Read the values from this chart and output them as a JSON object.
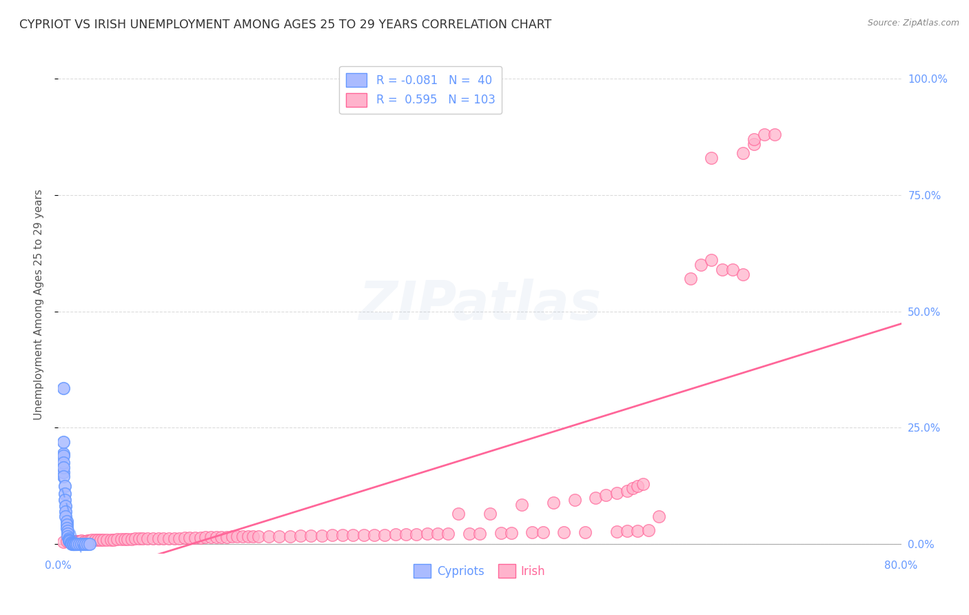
{
  "title": "CYPRIOT VS IRISH UNEMPLOYMENT AMONG AGES 25 TO 29 YEARS CORRELATION CHART",
  "source": "Source: ZipAtlas.com",
  "ylabel": "Unemployment Among Ages 25 to 29 years",
  "xlim": [
    0.0,
    0.8
  ],
  "ylim": [
    -0.02,
    1.05
  ],
  "xticks": [
    0.0,
    0.1,
    0.2,
    0.3,
    0.4,
    0.5,
    0.6,
    0.7,
    0.8
  ],
  "xticklabels": [
    "0.0%",
    "",
    "",
    "",
    "",
    "",
    "",
    "",
    "80.0%"
  ],
  "yticks_right": [
    0.0,
    0.25,
    0.5,
    0.75,
    1.0
  ],
  "yticklabels_right": [
    "0.0%",
    "25.0%",
    "50.0%",
    "75.0%",
    "100.0%"
  ],
  "cypriot_color": "#6699FF",
  "cypriot_color_fill": "#aabbff",
  "irish_color": "#FF6699",
  "irish_color_fill": "#FFB3CC",
  "cypriot_R": -0.081,
  "cypriot_N": 40,
  "irish_R": 0.595,
  "irish_N": 103,
  "watermark": "ZIPatlas",
  "background_color": "#ffffff",
  "grid_color": "#cccccc",
  "title_color": "#333333",
  "axis_label_color": "#6699FF",
  "cypriot_points": [
    [
      0.005,
      0.335
    ],
    [
      0.005,
      0.195
    ],
    [
      0.005,
      0.155
    ],
    [
      0.005,
      0.22
    ],
    [
      0.005,
      0.19
    ],
    [
      0.005,
      0.175
    ],
    [
      0.005,
      0.165
    ],
    [
      0.005,
      0.145
    ],
    [
      0.006,
      0.125
    ],
    [
      0.006,
      0.108
    ],
    [
      0.006,
      0.095
    ],
    [
      0.007,
      0.082
    ],
    [
      0.007,
      0.07
    ],
    [
      0.007,
      0.06
    ],
    [
      0.008,
      0.05
    ],
    [
      0.008,
      0.042
    ],
    [
      0.008,
      0.035
    ],
    [
      0.009,
      0.028
    ],
    [
      0.009,
      0.022
    ],
    [
      0.009,
      0.017
    ],
    [
      0.01,
      0.013
    ],
    [
      0.01,
      0.01
    ],
    [
      0.01,
      0.008
    ],
    [
      0.011,
      0.006
    ],
    [
      0.012,
      0.004
    ],
    [
      0.012,
      0.003
    ],
    [
      0.013,
      0.002
    ],
    [
      0.013,
      0.001
    ],
    [
      0.014,
      0.001
    ],
    [
      0.015,
      0.001
    ],
    [
      0.015,
      0.0
    ],
    [
      0.016,
      0.0
    ],
    [
      0.017,
      0.0
    ],
    [
      0.018,
      0.0
    ],
    [
      0.02,
      0.0
    ],
    [
      0.022,
      0.0
    ],
    [
      0.024,
      0.0
    ],
    [
      0.026,
      0.0
    ],
    [
      0.028,
      0.0
    ],
    [
      0.03,
      0.0
    ]
  ],
  "irish_points": [
    [
      0.005,
      0.005
    ],
    [
      0.008,
      0.006
    ],
    [
      0.01,
      0.007
    ],
    [
      0.012,
      0.005
    ],
    [
      0.014,
      0.006
    ],
    [
      0.016,
      0.007
    ],
    [
      0.018,
      0.006
    ],
    [
      0.02,
      0.007
    ],
    [
      0.022,
      0.008
    ],
    [
      0.025,
      0.007
    ],
    [
      0.028,
      0.008
    ],
    [
      0.03,
      0.008
    ],
    [
      0.032,
      0.009
    ],
    [
      0.035,
      0.009
    ],
    [
      0.038,
      0.009
    ],
    [
      0.04,
      0.01
    ],
    [
      0.043,
      0.01
    ],
    [
      0.046,
      0.01
    ],
    [
      0.05,
      0.01
    ],
    [
      0.053,
      0.01
    ],
    [
      0.056,
      0.011
    ],
    [
      0.06,
      0.011
    ],
    [
      0.063,
      0.011
    ],
    [
      0.066,
      0.011
    ],
    [
      0.07,
      0.011
    ],
    [
      0.073,
      0.012
    ],
    [
      0.077,
      0.012
    ],
    [
      0.08,
      0.012
    ],
    [
      0.085,
      0.012
    ],
    [
      0.09,
      0.012
    ],
    [
      0.095,
      0.013
    ],
    [
      0.1,
      0.013
    ],
    [
      0.105,
      0.013
    ],
    [
      0.11,
      0.013
    ],
    [
      0.115,
      0.013
    ],
    [
      0.12,
      0.014
    ],
    [
      0.125,
      0.014
    ],
    [
      0.13,
      0.014
    ],
    [
      0.135,
      0.014
    ],
    [
      0.14,
      0.015
    ],
    [
      0.145,
      0.015
    ],
    [
      0.15,
      0.015
    ],
    [
      0.155,
      0.015
    ],
    [
      0.16,
      0.015
    ],
    [
      0.165,
      0.016
    ],
    [
      0.17,
      0.016
    ],
    [
      0.175,
      0.016
    ],
    [
      0.18,
      0.016
    ],
    [
      0.185,
      0.016
    ],
    [
      0.19,
      0.016
    ],
    [
      0.2,
      0.017
    ],
    [
      0.21,
      0.017
    ],
    [
      0.22,
      0.017
    ],
    [
      0.23,
      0.018
    ],
    [
      0.24,
      0.018
    ],
    [
      0.25,
      0.018
    ],
    [
      0.26,
      0.019
    ],
    [
      0.27,
      0.019
    ],
    [
      0.28,
      0.019
    ],
    [
      0.29,
      0.02
    ],
    [
      0.3,
      0.02
    ],
    [
      0.31,
      0.02
    ],
    [
      0.32,
      0.021
    ],
    [
      0.33,
      0.021
    ],
    [
      0.34,
      0.021
    ],
    [
      0.35,
      0.022
    ],
    [
      0.36,
      0.022
    ],
    [
      0.37,
      0.022
    ],
    [
      0.38,
      0.065
    ],
    [
      0.39,
      0.023
    ],
    [
      0.4,
      0.023
    ],
    [
      0.41,
      0.065
    ],
    [
      0.42,
      0.024
    ],
    [
      0.43,
      0.024
    ],
    [
      0.44,
      0.085
    ],
    [
      0.45,
      0.025
    ],
    [
      0.46,
      0.025
    ],
    [
      0.47,
      0.09
    ],
    [
      0.48,
      0.026
    ],
    [
      0.49,
      0.095
    ],
    [
      0.5,
      0.026
    ],
    [
      0.51,
      0.1
    ],
    [
      0.52,
      0.105
    ],
    [
      0.53,
      0.027
    ],
    [
      0.53,
      0.11
    ],
    [
      0.54,
      0.115
    ],
    [
      0.54,
      0.028
    ],
    [
      0.545,
      0.12
    ],
    [
      0.55,
      0.028
    ],
    [
      0.55,
      0.125
    ],
    [
      0.555,
      0.13
    ],
    [
      0.56,
      0.03
    ],
    [
      0.57,
      0.06
    ],
    [
      0.6,
      0.57
    ],
    [
      0.61,
      0.6
    ],
    [
      0.62,
      0.61
    ],
    [
      0.63,
      0.59
    ],
    [
      0.64,
      0.59
    ],
    [
      0.65,
      0.58
    ],
    [
      0.62,
      0.83
    ],
    [
      0.65,
      0.84
    ],
    [
      0.66,
      0.86
    ],
    [
      0.66,
      0.87
    ],
    [
      0.67,
      0.88
    ],
    [
      0.68,
      0.88
    ]
  ]
}
